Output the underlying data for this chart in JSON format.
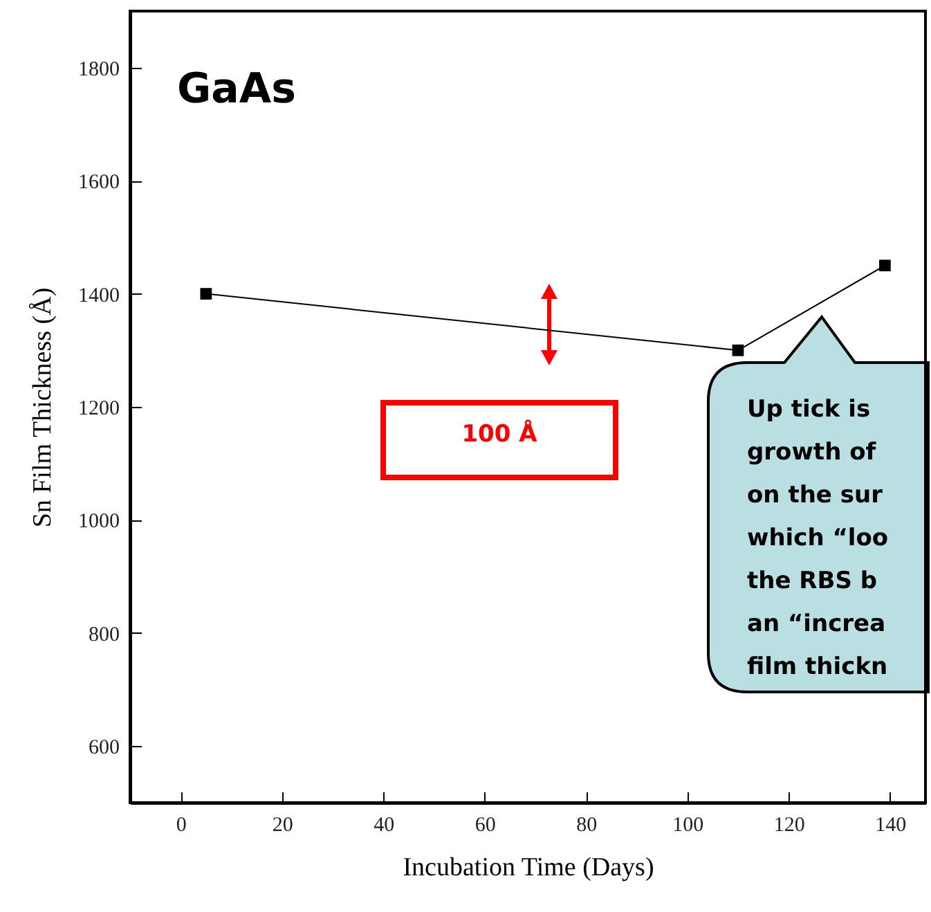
{
  "chart_data": {
    "type": "line",
    "xlabel": "Incubation Time (Days)",
    "ylabel": "Sn Film Thickness (Å)",
    "x": [
      5,
      110,
      139
    ],
    "values": [
      1400,
      1300,
      1450
    ],
    "color": "#000000",
    "marker": "square",
    "line_style": "solid",
    "xlim": [
      -10,
      147
    ],
    "xticks": [
      0,
      20,
      40,
      60,
      80,
      100,
      120,
      140
    ],
    "ylim": [
      500,
      1900
    ],
    "yticks": [
      600,
      800,
      1000,
      1200,
      1400,
      1600,
      1800
    ],
    "grid": false,
    "annotations": [
      "GaAs",
      "100 Å",
      "Up tick is\ngrowth of\non the sur\nwhich “loo\nthe RBS b\nan “increa\nfilm thickn"
    ]
  }
}
